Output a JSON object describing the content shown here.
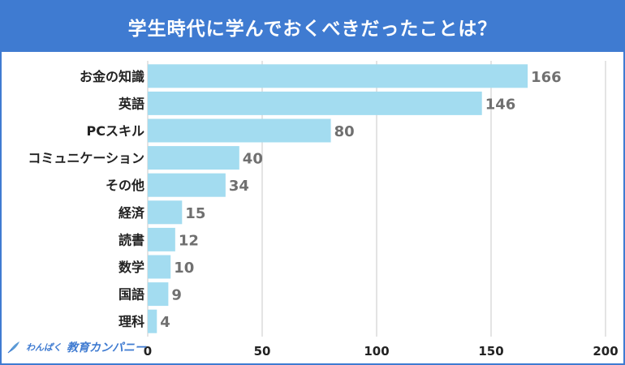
{
  "chart_data": {
    "type": "bar",
    "orientation": "horizontal",
    "title": "学生時代に学んでおくべきだったことは？",
    "categories": [
      "お金の知識",
      "英語",
      "PCスキル",
      "コミュニケーション",
      "その他",
      "経済",
      "読書",
      "数学",
      "国語",
      "理科"
    ],
    "values": [
      166,
      146,
      80,
      40,
      34,
      15,
      12,
      10,
      9,
      4
    ],
    "xlim": [
      0,
      200
    ],
    "xticks": [
      0,
      50,
      100,
      150,
      200
    ],
    "grid": true,
    "legend": "none",
    "data_labels": true,
    "colors": {
      "bar": "#a3dcf0",
      "title_background": "#3f7bd1",
      "grid": "#c8c8c8",
      "value_label": "#707070",
      "category_label": "#222222"
    }
  },
  "logo": {
    "sub": "わんぱく",
    "main": "教育カンパニー",
    "icon": "quill-icon"
  }
}
